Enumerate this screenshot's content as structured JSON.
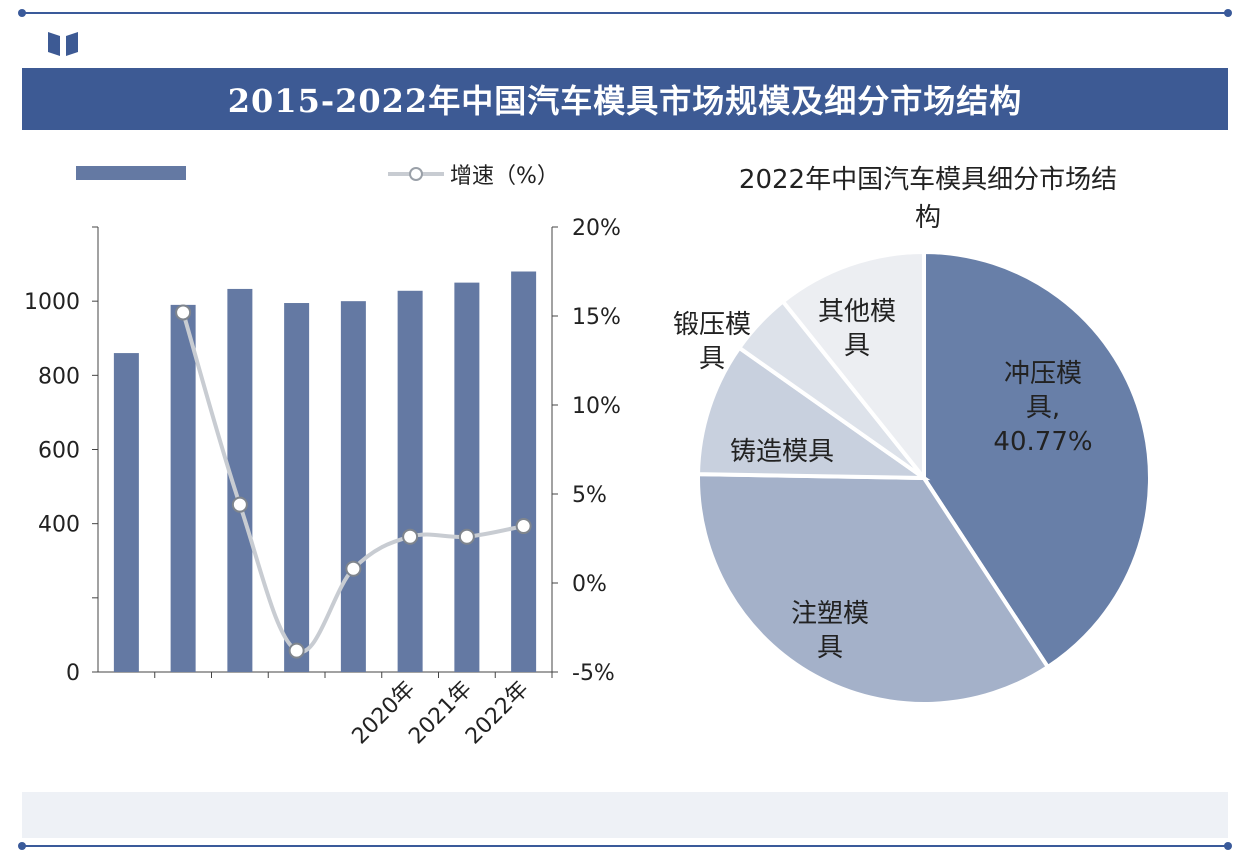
{
  "title": "2015-2022年中国汽车模具市场规模及细分市场结构",
  "colors": {
    "banner": "#3d5a94",
    "bar": "#6479a3",
    "line": "#c8ccd2",
    "pie_1": "#687fa8",
    "pie_2": "#a4b1c9",
    "pie_3": "#c8d0de",
    "pie_4": "#dde2ea",
    "pie_5": "#eceef2"
  },
  "chart_data": [
    {
      "type": "bar",
      "legend": {
        "bar_label": "",
        "line_label": "增速（%）"
      },
      "categories": [
        "",
        "",
        "",
        "",
        "",
        "2020年",
        "2021年",
        "2022年"
      ],
      "series": [
        {
          "name": "",
          "type": "bar",
          "axis": "left",
          "values": [
            860,
            990,
            1033,
            995,
            1000,
            1028,
            1050,
            1080
          ]
        },
        {
          "name": "增速（%）",
          "type": "line",
          "axis": "right",
          "values": [
            null,
            15.2,
            4.4,
            -3.8,
            0.8,
            2.6,
            2.6,
            3.2
          ]
        }
      ],
      "left_axis": {
        "ticks": [
          "0",
          "",
          "400",
          "600",
          "800",
          "1000",
          ""
        ],
        "tick_values": [
          0,
          200,
          400,
          600,
          800,
          1000,
          1200
        ],
        "ylim": [
          0,
          1200
        ]
      },
      "right_axis": {
        "ticks": [
          "-5%",
          "0%",
          "5%",
          "10%",
          "15%",
          "20%"
        ],
        "tick_values": [
          -5,
          0,
          5,
          10,
          15,
          20
        ],
        "ylim": [
          -5,
          20
        ]
      }
    },
    {
      "type": "pie",
      "title": "2022年中国汽车模具细分市场结构",
      "slices": [
        {
          "label": "冲压模具",
          "value": 40.77,
          "label_text": "40.77%"
        },
        {
          "label": "注塑模具",
          "value": 34.5
        },
        {
          "label": "铸造模具",
          "value": 9.5
        },
        {
          "label": "锻压模具",
          "value": 4.5
        },
        {
          "label": "其他模具",
          "value": 10.73
        }
      ]
    }
  ]
}
